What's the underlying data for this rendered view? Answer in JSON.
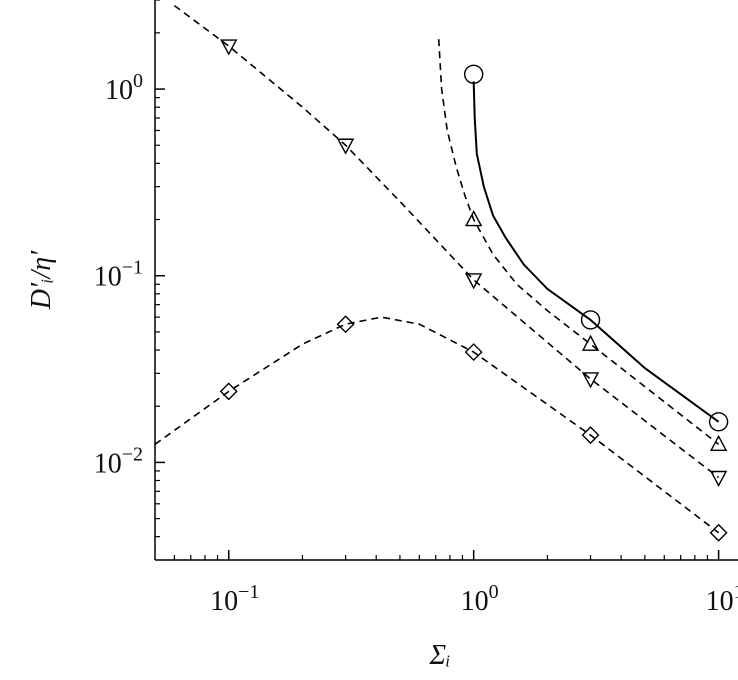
{
  "chart_data": {
    "type": "scatter",
    "x_label": "Σᵢ",
    "y_label": "D′ᵢ/η′",
    "log_x": true,
    "log_y": true,
    "xlim": [
      0.05,
      12
    ],
    "ylim": [
      0.003,
      3
    ],
    "xticks": [
      {
        "value": 0.1,
        "label": "10",
        "exponent": "−1"
      },
      {
        "value": 1,
        "label": "10",
        "exponent": "0"
      },
      {
        "value": 10,
        "label": "10",
        "exponent": "1"
      }
    ],
    "yticks": [
      {
        "value": 0.01,
        "label": "10",
        "exponent": "−2"
      },
      {
        "value": 0.1,
        "label": "10",
        "exponent": "−1"
      },
      {
        "value": 1,
        "label": "10",
        "exponent": "0"
      }
    ],
    "x_minor_ticks": [
      0.06,
      0.07,
      0.08,
      0.09,
      0.2,
      0.3,
      0.4,
      0.5,
      0.6,
      0.7,
      0.8,
      0.9,
      2,
      3,
      4,
      5,
      6,
      7,
      8,
      9
    ],
    "y_minor_ticks": [
      0.004,
      0.005,
      0.006,
      0.007,
      0.008,
      0.009,
      0.02,
      0.03,
      0.04,
      0.05,
      0.06,
      0.07,
      0.08,
      0.09,
      0.2,
      0.3,
      0.4,
      0.5,
      0.6,
      0.7,
      0.8,
      0.9,
      2,
      3
    ],
    "color": "#000000",
    "series": [
      {
        "marker": "circle",
        "x": [
          1,
          3,
          10
        ],
        "values": [
          1.2,
          0.058,
          0.0165
        ]
      },
      {
        "marker": "triangle-up",
        "x": [
          1,
          3,
          10
        ],
        "values": [
          0.2,
          0.043,
          0.0125
        ]
      },
      {
        "marker": "triangle-down",
        "x": [
          0.1,
          0.3,
          1,
          3,
          10
        ],
        "values": [
          1.7,
          0.5,
          0.095,
          0.028,
          0.0083
        ]
      },
      {
        "marker": "diamond",
        "x": [
          0.1,
          0.3,
          1,
          3,
          10
        ],
        "values": [
          0.024,
          0.055,
          0.039,
          0.014,
          0.0042
        ]
      }
    ],
    "lines": [
      {
        "style": "solid",
        "x": [
          1.0,
          1.01,
          1.03,
          1.1,
          1.2,
          1.35,
          1.6,
          2,
          3,
          5,
          10
        ],
        "values": [
          1.1,
          0.7,
          0.45,
          0.3,
          0.21,
          0.16,
          0.115,
          0.085,
          0.058,
          0.032,
          0.0165
        ]
      },
      {
        "style": "dashed",
        "x": [
          0.72,
          0.74,
          0.78,
          0.85,
          0.92,
          1,
          1.2,
          1.5,
          2,
          3,
          10
        ],
        "values": [
          1.85,
          1.0,
          0.6,
          0.38,
          0.27,
          0.2,
          0.13,
          0.09,
          0.065,
          0.043,
          0.0125
        ]
      },
      {
        "style": "dashed",
        "x": [
          0.06,
          0.1,
          0.2,
          0.3,
          0.5,
          1,
          3,
          10
        ],
        "values": [
          2.8,
          1.7,
          0.8,
          0.5,
          0.25,
          0.095,
          0.028,
          0.0083
        ]
      },
      {
        "style": "dashed",
        "x": [
          0.05,
          0.1,
          0.2,
          0.3,
          0.42,
          0.6,
          1,
          3,
          10
        ],
        "values": [
          0.0125,
          0.024,
          0.043,
          0.055,
          0.06,
          0.055,
          0.039,
          0.014,
          0.0042
        ]
      }
    ]
  }
}
